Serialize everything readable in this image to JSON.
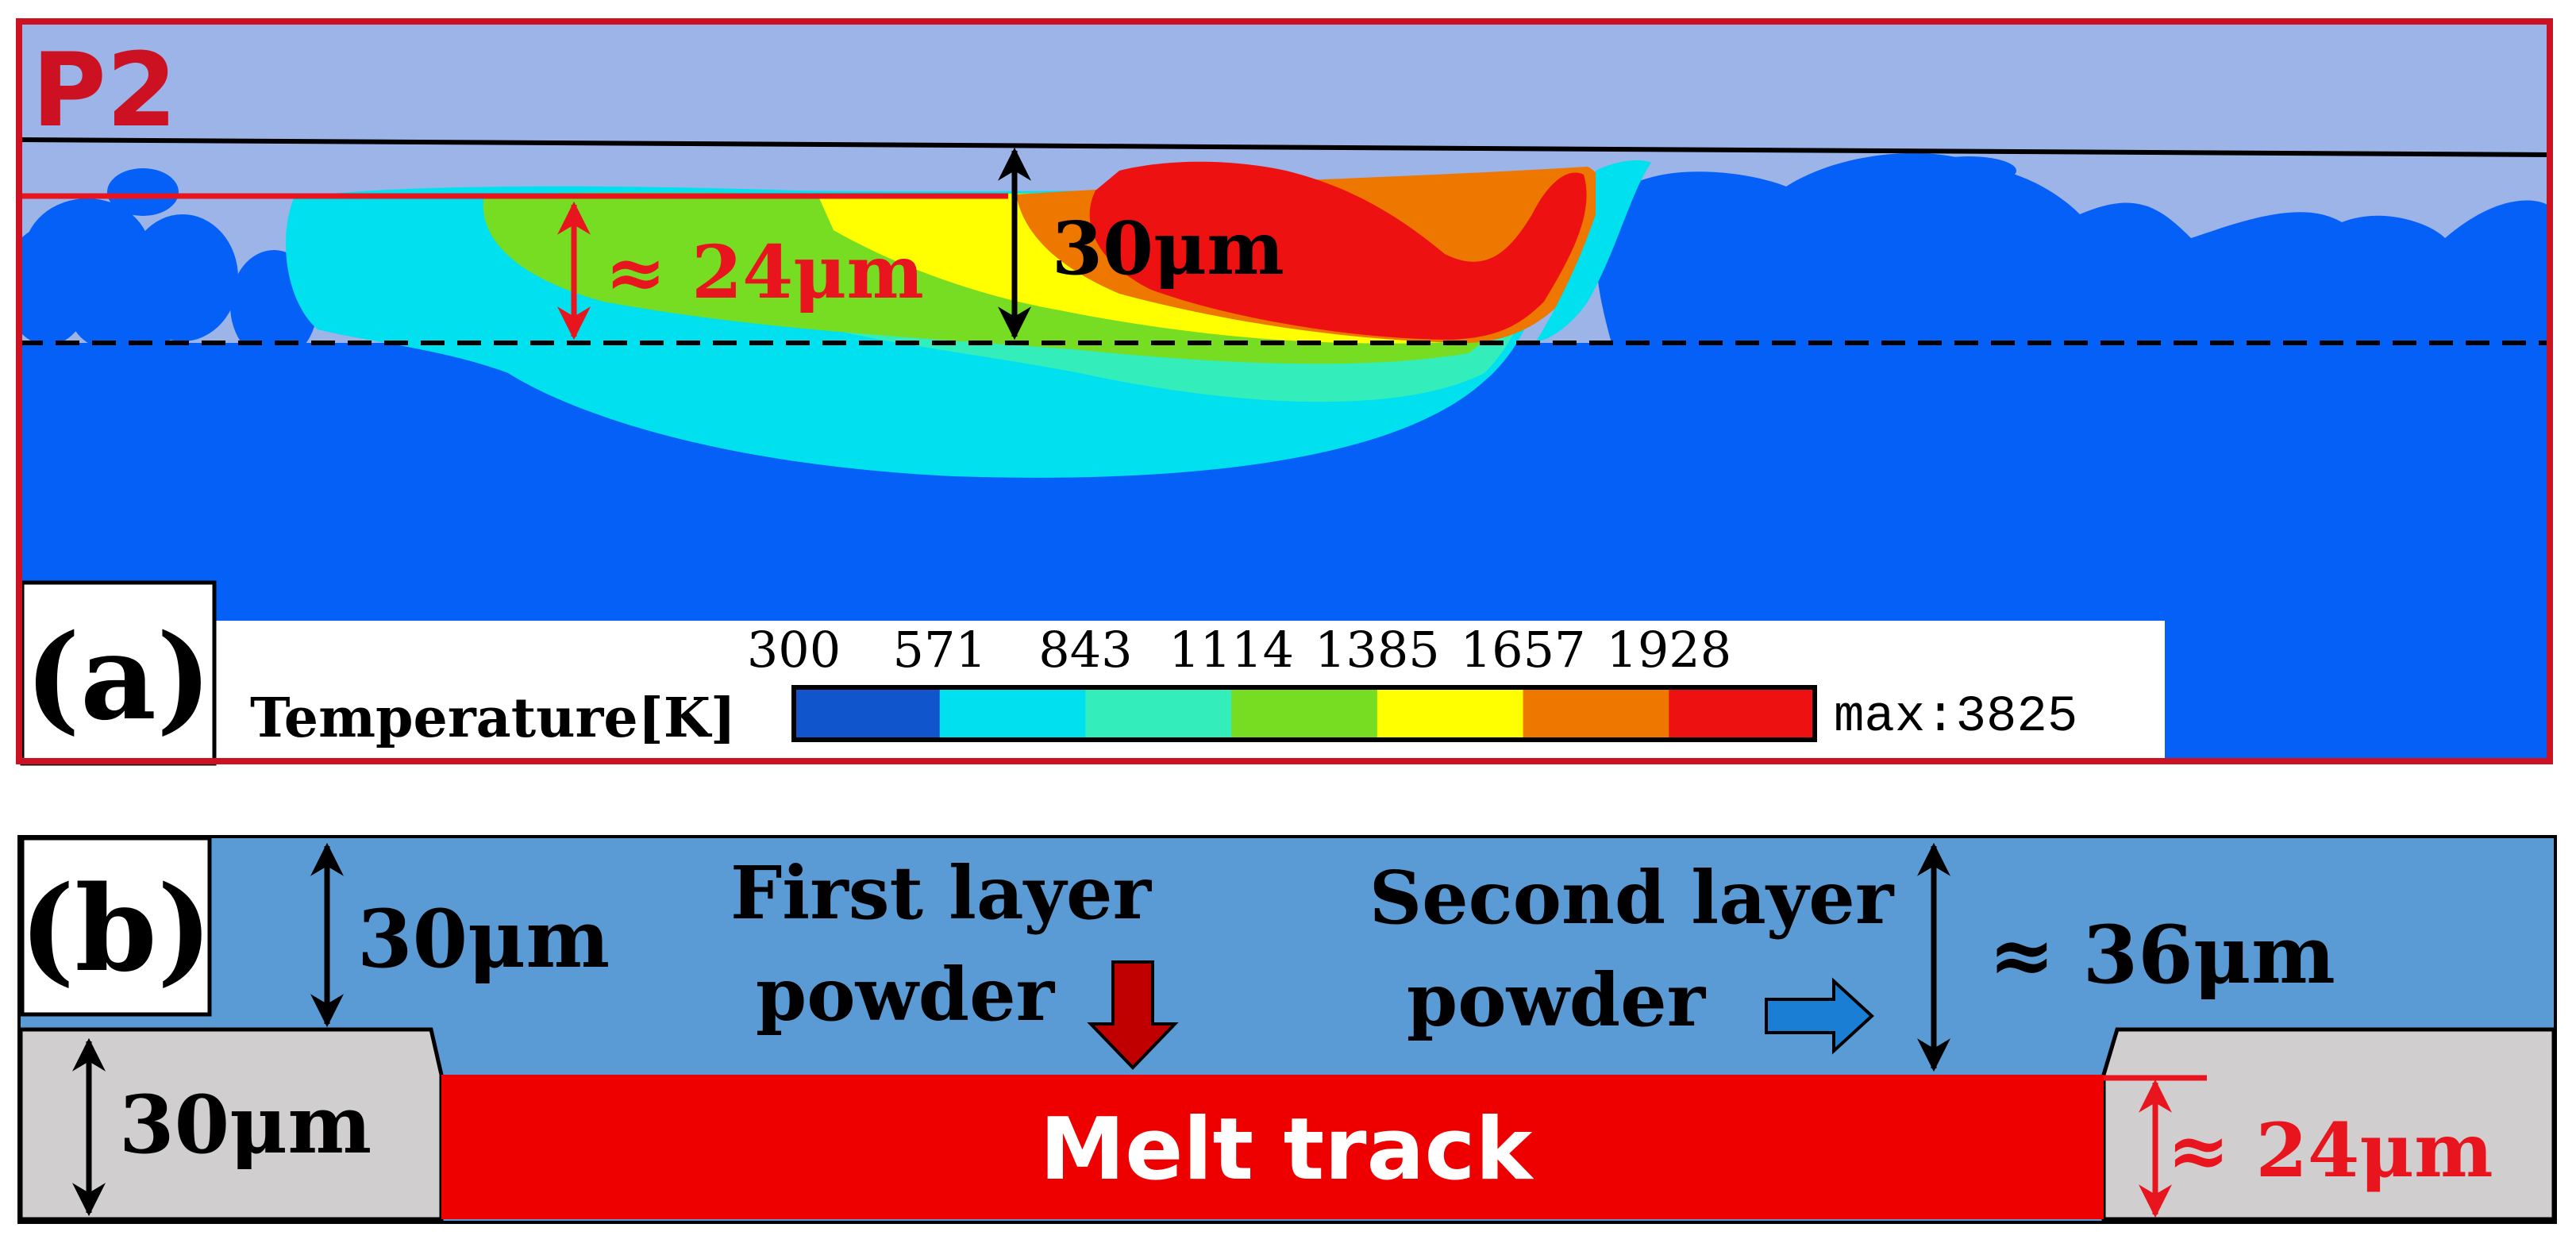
{
  "panel_a": {
    "label": "(a)",
    "tag": "P2",
    "dim_red": "≈ 24μm",
    "dim_black": "30μm",
    "legend": {
      "title": "Temperature[K]",
      "ticks": [
        "300",
        "571",
        "843",
        "1114",
        "1385",
        "1657",
        "1928"
      ],
      "max": "max:3825",
      "colors": [
        "#1155cc",
        "#00e0ee",
        "#33eebb",
        "#77dd22",
        "#ffff00",
        "#ee7700",
        "#ee1111"
      ]
    }
  },
  "panel_b": {
    "label": "(b)",
    "dim_top_left": "30μm",
    "dim_bottom_left": "30μm",
    "first_layer_line1": "First layer",
    "first_layer_line2": "powder",
    "second_layer_line1": "Second layer",
    "second_layer_line2": "powder",
    "dim_right": "≈ 36μm",
    "dim_red": "≈ 24μm",
    "melt_track": "Melt track"
  },
  "colors": {
    "gas": "#9cb4e8",
    "substrate": "#0560f8",
    "frame_red": "#cc1122",
    "powder_b": "#5b9bd5",
    "grey_block": "#d0cece",
    "melt_red": "#ee0000",
    "accent_red": "#e8141e"
  }
}
